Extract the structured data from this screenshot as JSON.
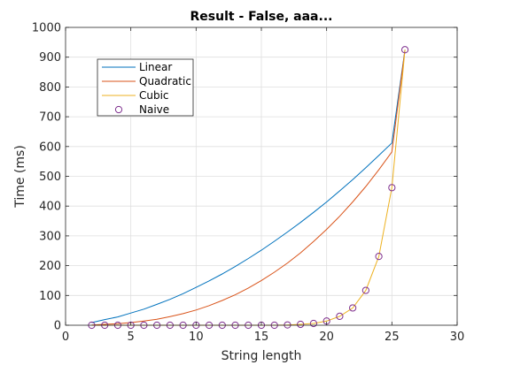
{
  "chart_data": {
    "type": "line",
    "title": "Result - False, aaa...",
    "xlabel": "String length",
    "ylabel": "Time (ms)",
    "xlim": [
      0,
      30
    ],
    "ylim": [
      0,
      1000
    ],
    "xticks": [
      "0",
      "5",
      "10",
      "15",
      "20",
      "25",
      "30"
    ],
    "yticks": [
      "0",
      "100",
      "200",
      "300",
      "400",
      "500",
      "600",
      "700",
      "800",
      "900",
      "1000"
    ],
    "grid": true,
    "legend_position": "top-left",
    "x": [
      2,
      3,
      4,
      5,
      6,
      7,
      8,
      9,
      10,
      11,
      12,
      13,
      14,
      15,
      16,
      17,
      18,
      19,
      20,
      21,
      22,
      23,
      24,
      25,
      26
    ],
    "series": [
      {
        "name": "Linear",
        "style": "line",
        "color": "#0072BD",
        "values": [
          9,
          19,
          28,
          41,
          54,
          70,
          87,
          106,
          127,
          149,
          172,
          197,
          224,
          252,
          282,
          313,
          345,
          379,
          414,
          451,
          489,
          529,
          570,
          612,
          925
        ]
      },
      {
        "name": "Quadratic",
        "style": "line",
        "color": "#D95319",
        "values": [
          1,
          3,
          5,
          9,
          14,
          20,
          29,
          39,
          51,
          66,
          83,
          102,
          125,
          150,
          178,
          209,
          243,
          281,
          322,
          366,
          414,
          466,
          522,
          582,
          925
        ]
      },
      {
        "name": "Cubic",
        "style": "line",
        "color": "#EDB120",
        "values": [
          0,
          0,
          0,
          0,
          0,
          0,
          0,
          0,
          0,
          0,
          0,
          0,
          0,
          0,
          0,
          1,
          3,
          6,
          14,
          30,
          58,
          117,
          231,
          462,
          925
        ]
      },
      {
        "name": "Naive",
        "style": "marker",
        "color": "#7E2F8E",
        "values": [
          0,
          0,
          0,
          0,
          0,
          0,
          0,
          0,
          0,
          0,
          0,
          0,
          0,
          0,
          0,
          1,
          3,
          6,
          14,
          30,
          58,
          117,
          231,
          462,
          925
        ]
      }
    ]
  }
}
